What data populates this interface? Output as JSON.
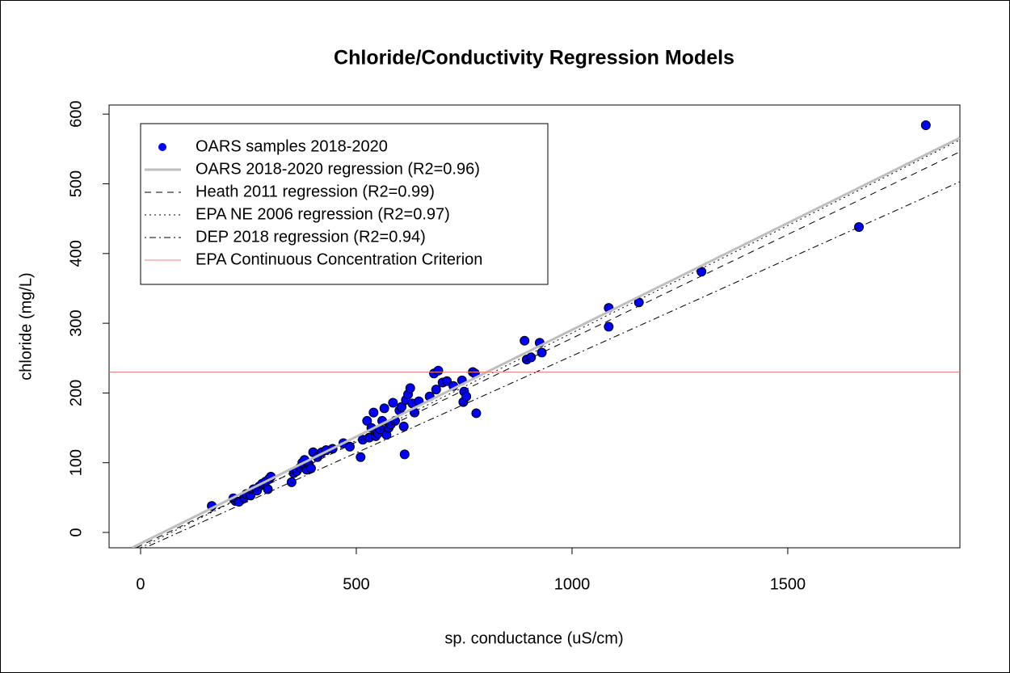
{
  "chart_data": {
    "type": "scatter",
    "title": "Chloride/Conductivity Regression Models",
    "x_label": "sp. conductance (uS/cm)",
    "y_label": "chloride (mg/L)",
    "xlim": [
      -73,
      1899
    ],
    "ylim": [
      -22,
      613
    ],
    "xticks": [
      0,
      500,
      1000,
      1500
    ],
    "yticks": [
      0,
      100,
      200,
      300,
      400,
      500,
      600
    ],
    "legend": "top-left",
    "series": [
      {
        "name": "OARS samples 2018-2020",
        "color": "#0000ff",
        "style": "points",
        "x": [
          165,
          215,
          220,
          228,
          240,
          245,
          255,
          262,
          270,
          275,
          282,
          290,
          295,
          298,
          302,
          350,
          355,
          362,
          370,
          375,
          380,
          385,
          390,
          395,
          400,
          410,
          420,
          430,
          445,
          470,
          485,
          510,
          515,
          525,
          530,
          535,
          540,
          545,
          550,
          555,
          560,
          565,
          570,
          575,
          580,
          585,
          590,
          600,
          605,
          610,
          612,
          615,
          620,
          625,
          630,
          635,
          645,
          670,
          680,
          685,
          690,
          700,
          710,
          725,
          745,
          748,
          750,
          755,
          770,
          775,
          778,
          890,
          895,
          905,
          925,
          930,
          1085,
          1085,
          1155,
          1300,
          1665,
          1820
        ],
        "values": [
          38,
          49,
          45,
          44,
          50,
          55,
          53,
          62,
          60,
          66,
          70,
          73,
          62,
          77,
          80,
          72,
          85,
          88,
          93,
          100,
          104,
          90,
          98,
          92,
          115,
          108,
          115,
          118,
          120,
          128,
          123,
          108,
          133,
          160,
          136,
          150,
          172,
          138,
          142,
          148,
          160,
          178,
          140,
          150,
          155,
          186,
          160,
          175,
          180,
          152,
          112,
          190,
          198,
          207,
          185,
          172,
          188,
          195,
          228,
          205,
          232,
          215,
          217,
          210,
          218,
          187,
          202,
          195,
          230,
          228,
          171,
          275,
          248,
          251,
          272,
          258,
          322,
          295,
          330,
          374,
          438,
          584
        ]
      },
      {
        "name": "OARS 2018-2020 regression (R2=0.96)",
        "color": "#bebebe",
        "style": "solid",
        "width": 3,
        "x": [
          -20,
          1899
        ],
        "values": [
          -22,
          566
        ]
      },
      {
        "name": "Heath 2011 regression (R2=0.99)",
        "color": "#000000",
        "style": "dashed",
        "width": 1,
        "x": [
          -10,
          1899
        ],
        "values": [
          -22,
          546
        ]
      },
      {
        "name": "EPA NE 2006 regression (R2=0.97)",
        "color": "#000000",
        "style": "dotted",
        "width": 1,
        "x": [
          0,
          1899
        ],
        "values": [
          -22,
          563
        ]
      },
      {
        "name": "DEP 2018 regression (R2=0.94)",
        "color": "#000000",
        "style": "dotdash",
        "width": 1,
        "x": [
          10,
          1899
        ],
        "values": [
          -22,
          503
        ]
      },
      {
        "name": "EPA Continuous Concentration Criterion",
        "color": "#f08080",
        "style": "solid",
        "width": 1,
        "x": [
          -73,
          1899
        ],
        "values": [
          230,
          230
        ]
      }
    ]
  }
}
